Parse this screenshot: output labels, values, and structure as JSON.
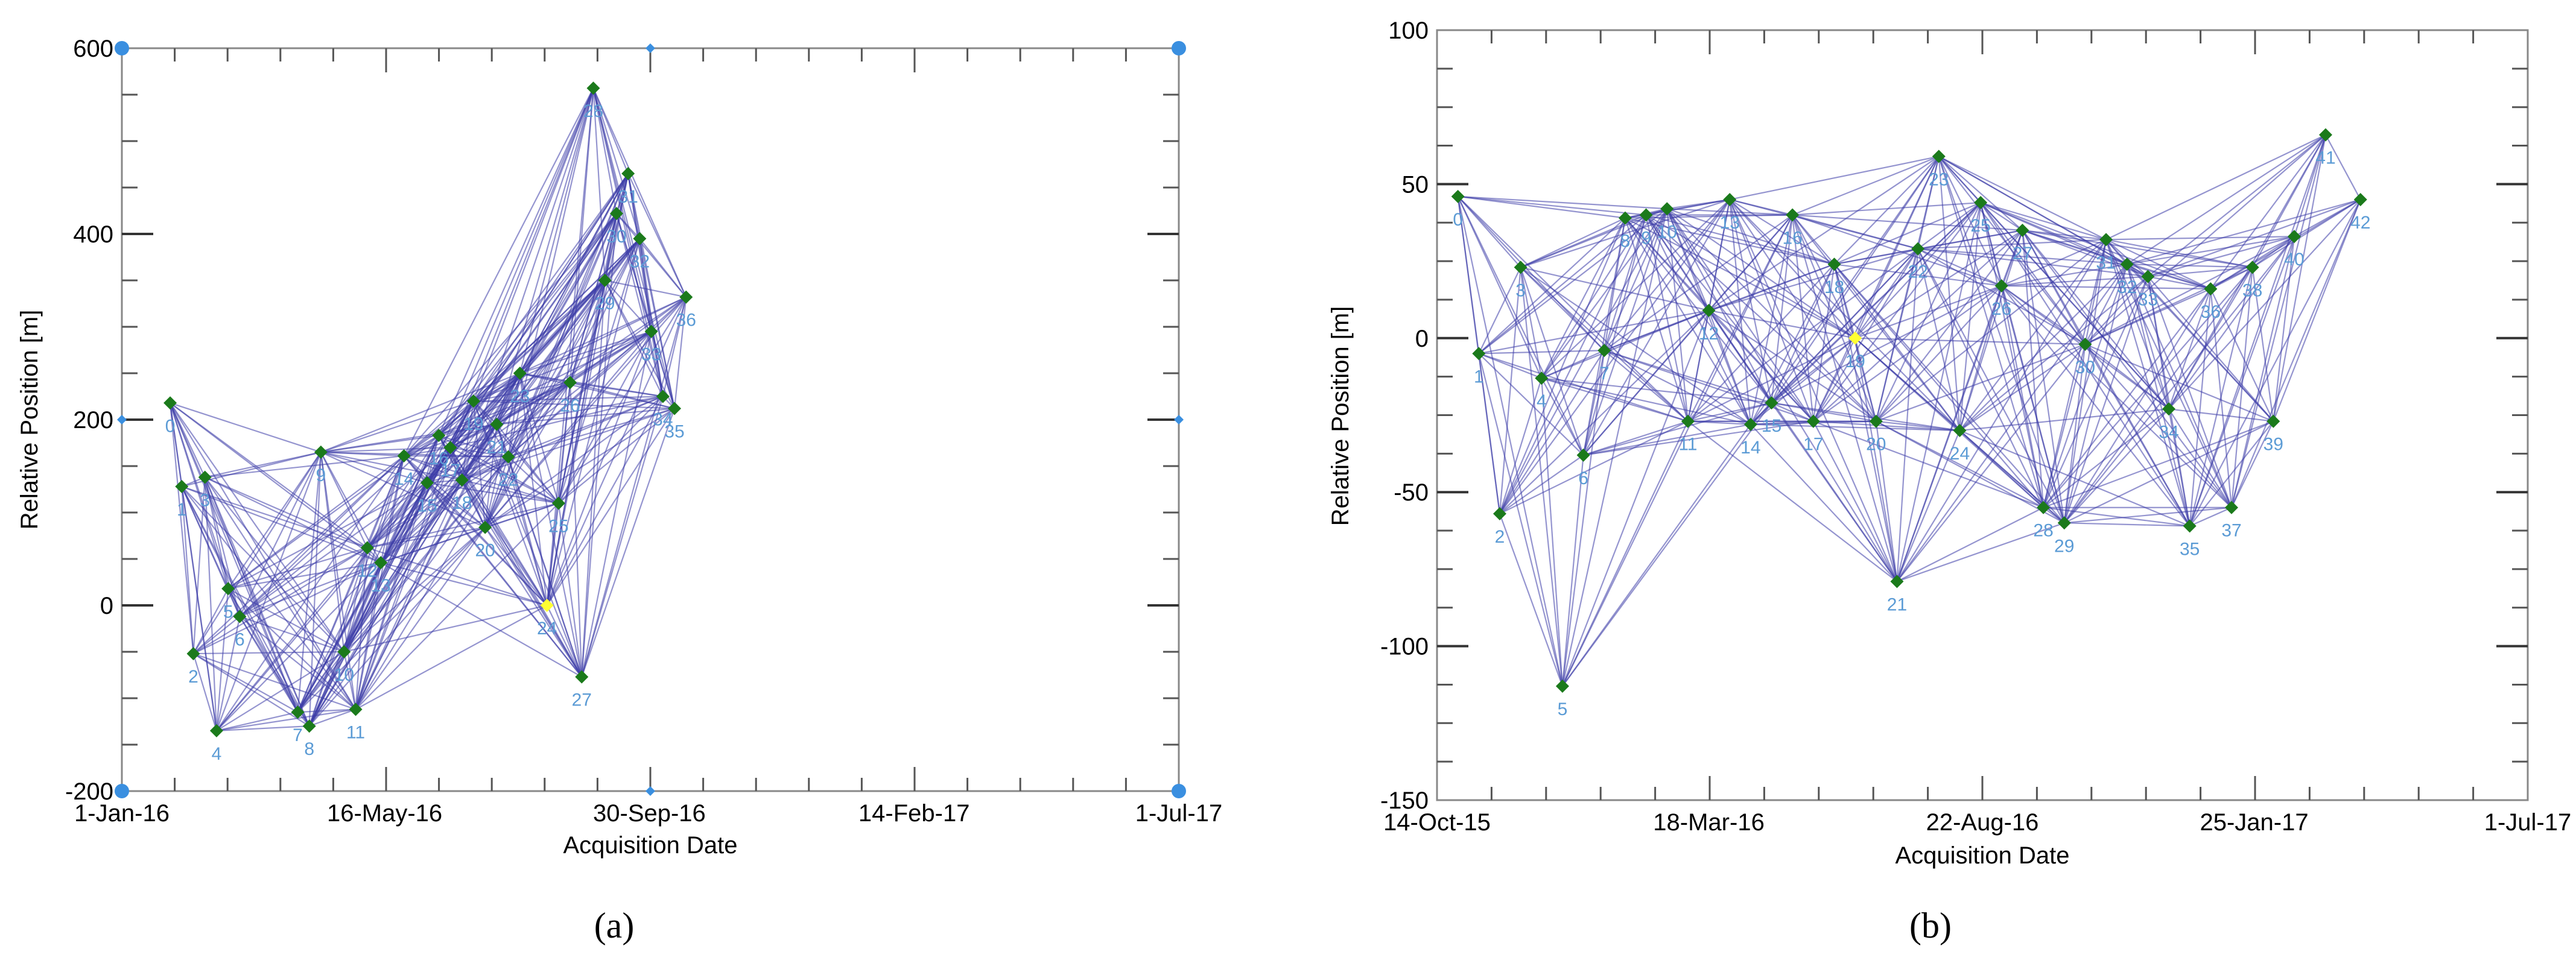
{
  "colors": {
    "edge": "#3d3da8",
    "marker": "#1b7a1b",
    "reference": "#ffff33",
    "point_label": "#5b9bd5",
    "corner_dot": "#3a8fe0"
  },
  "chart_data": [
    {
      "type": "scatter",
      "panel_label": "(a)",
      "xlabel": "Acquisition Date",
      "ylabel": "Relative Position [m]",
      "xlim": [
        0,
        547
      ],
      "ylim": [
        -200,
        600
      ],
      "xtick_labels": [
        {
          "day": 0,
          "label": "1-Jan-16"
        },
        {
          "day": 136,
          "label": "16-May-16"
        },
        {
          "day": 273,
          "label": "30-Sep-16"
        },
        {
          "day": 410,
          "label": "14-Feb-17"
        },
        {
          "day": 547,
          "label": "1-Jul-17"
        }
      ],
      "ytick_labels": [
        "-200",
        "0",
        "200",
        "400",
        "600"
      ],
      "ytick_values": [
        -200,
        0,
        200,
        400,
        600
      ],
      "reference_index": 24,
      "points": [
        {
          "id": "0",
          "day": 25,
          "value": 218
        },
        {
          "id": "1",
          "day": 31,
          "value": 128
        },
        {
          "id": "2",
          "day": 37,
          "value": -52
        },
        {
          "id": "3",
          "day": 43,
          "value": 138
        },
        {
          "id": "4",
          "day": 49,
          "value": -135
        },
        {
          "id": "5",
          "day": 55,
          "value": 18
        },
        {
          "id": "6",
          "day": 61,
          "value": -12
        },
        {
          "id": "7",
          "day": 91,
          "value": -115
        },
        {
          "id": "8",
          "day": 97,
          "value": -130
        },
        {
          "id": "9",
          "day": 103,
          "value": 165
        },
        {
          "id": "10",
          "day": 115,
          "value": -50
        },
        {
          "id": "11",
          "day": 121,
          "value": -112
        },
        {
          "id": "12",
          "day": 127,
          "value": 62
        },
        {
          "id": "13",
          "day": 134,
          "value": 46
        },
        {
          "id": "14",
          "day": 146,
          "value": 161
        },
        {
          "id": "15",
          "day": 158,
          "value": 132
        },
        {
          "id": "16",
          "day": 164,
          "value": 183
        },
        {
          "id": "17",
          "day": 170,
          "value": 170
        },
        {
          "id": "18",
          "day": 176,
          "value": 135
        },
        {
          "id": "19",
          "day": 182,
          "value": 220
        },
        {
          "id": "20",
          "day": 188,
          "value": 84
        },
        {
          "id": "21",
          "day": 194,
          "value": 195
        },
        {
          "id": "22",
          "day": 200,
          "value": 160
        },
        {
          "id": "23",
          "day": 206,
          "value": 250
        },
        {
          "id": "24",
          "day": 220,
          "value": 0
        },
        {
          "id": "25",
          "day": 226,
          "value": 110
        },
        {
          "id": "26",
          "day": 232,
          "value": 240
        },
        {
          "id": "27",
          "day": 238,
          "value": -77
        },
        {
          "id": "28",
          "day": 244,
          "value": 557
        },
        {
          "id": "29",
          "day": 250,
          "value": 350
        },
        {
          "id": "30",
          "day": 256,
          "value": 422
        },
        {
          "id": "31",
          "day": 262,
          "value": 465
        },
        {
          "id": "32",
          "day": 268,
          "value": 395
        },
        {
          "id": "33",
          "day": 274,
          "value": 295
        },
        {
          "id": "34",
          "day": 280,
          "value": 225
        },
        {
          "id": "35",
          "day": 286,
          "value": 212
        },
        {
          "id": "36",
          "day": 292,
          "value": 332
        }
      ]
    },
    {
      "type": "scatter",
      "panel_label": "(b)",
      "xlabel": "Acquisition Date",
      "ylabel": "Relative Position [m]",
      "xlim": [
        0,
        626
      ],
      "ylim": [
        -150,
        100
      ],
      "xtick_labels": [
        {
          "day": 0,
          "label": "14-Oct-15"
        },
        {
          "day": 156,
          "label": "18-Mar-16"
        },
        {
          "day": 313,
          "label": "22-Aug-16"
        },
        {
          "day": 469,
          "label": "25-Jan-17"
        },
        {
          "day": 626,
          "label": "1-Jul-17"
        }
      ],
      "ytick_labels": [
        "-150",
        "-100",
        "-50",
        "0",
        "50",
        "100"
      ],
      "ytick_values": [
        -150,
        -100,
        -50,
        0,
        50,
        100
      ],
      "reference_index": 19,
      "points": [
        {
          "id": "0",
          "day": 12,
          "value": 46
        },
        {
          "id": "1",
          "day": 24,
          "value": -5
        },
        {
          "id": "2",
          "day": 36,
          "value": -57
        },
        {
          "id": "3",
          "day": 48,
          "value": 23
        },
        {
          "id": "4",
          "day": 60,
          "value": -13
        },
        {
          "id": "5",
          "day": 72,
          "value": -113
        },
        {
          "id": "6",
          "day": 84,
          "value": -38
        },
        {
          "id": "7",
          "day": 96,
          "value": -4
        },
        {
          "id": "8",
          "day": 108,
          "value": 39
        },
        {
          "id": "9",
          "day": 120,
          "value": 40
        },
        {
          "id": "10",
          "day": 132,
          "value": 42
        },
        {
          "id": "11",
          "day": 144,
          "value": -27
        },
        {
          "id": "12",
          "day": 156,
          "value": 9
        },
        {
          "id": "13",
          "day": 168,
          "value": 45
        },
        {
          "id": "14",
          "day": 180,
          "value": -28
        },
        {
          "id": "15",
          "day": 192,
          "value": -21
        },
        {
          "id": "16",
          "day": 204,
          "value": 40
        },
        {
          "id": "17",
          "day": 216,
          "value": -27
        },
        {
          "id": "18",
          "day": 228,
          "value": 24
        },
        {
          "id": "19",
          "day": 240,
          "value": 0
        },
        {
          "id": "20",
          "day": 252,
          "value": -27
        },
        {
          "id": "21",
          "day": 264,
          "value": -79
        },
        {
          "id": "22",
          "day": 276,
          "value": 29
        },
        {
          "id": "23",
          "day": 288,
          "value": 59
        },
        {
          "id": "24",
          "day": 300,
          "value": -30
        },
        {
          "id": "25",
          "day": 312,
          "value": 44
        },
        {
          "id": "26",
          "day": 324,
          "value": 17
        },
        {
          "id": "27",
          "day": 336,
          "value": 35
        },
        {
          "id": "28",
          "day": 348,
          "value": -55
        },
        {
          "id": "29",
          "day": 360,
          "value": -60
        },
        {
          "id": "30",
          "day": 372,
          "value": -2
        },
        {
          "id": "31",
          "day": 384,
          "value": 32
        },
        {
          "id": "32",
          "day": 396,
          "value": 24
        },
        {
          "id": "33",
          "day": 408,
          "value": 20
        },
        {
          "id": "34",
          "day": 420,
          "value": -23
        },
        {
          "id": "35",
          "day": 432,
          "value": -61
        },
        {
          "id": "36",
          "day": 444,
          "value": 16
        },
        {
          "id": "37",
          "day": 456,
          "value": -55
        },
        {
          "id": "38",
          "day": 468,
          "value": 23
        },
        {
          "id": "39",
          "day": 480,
          "value": -27
        },
        {
          "id": "40",
          "day": 492,
          "value": 33
        },
        {
          "id": "41",
          "day": 510,
          "value": 66
        },
        {
          "id": "42",
          "day": 530,
          "value": 45
        }
      ]
    }
  ]
}
